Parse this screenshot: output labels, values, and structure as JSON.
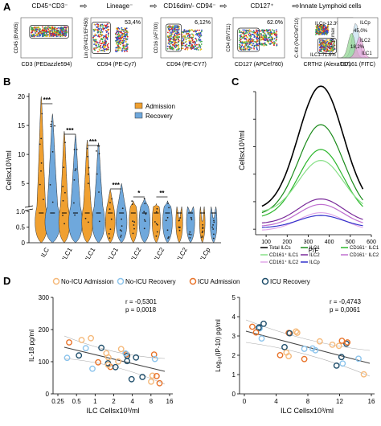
{
  "panelA": {
    "letter": "A",
    "gates": [
      {
        "title": "CD45⁺CD3⁻",
        "ylabel": "CD45 (BV605)",
        "xlabel": "CD3 (PEDazzle594)",
        "pct": ""
      },
      {
        "title": "Lineage⁻",
        "ylabel": "Lin (BV421/EF450)",
        "xlabel": "CD94 (PE-Cy7)",
        "pct": "53,4%"
      },
      {
        "title": "CD16dim/- CD94⁻",
        "ylabel": "CD16 (AF700)",
        "xlabel": "CD94 (PE-CY7)",
        "pct": "6,12%"
      },
      {
        "title": "CD127⁺",
        "ylabel": "CD4 (BV711)",
        "xlabel": "CD127 (APCef780)",
        "pct": "62.0%"
      },
      {
        "title": "Innate Lymphoid cells",
        "ylabel": "C-Kit (PeCPef710)",
        "xlabel": "CRTH2 (Alexa787)",
        "pct": ""
      }
    ],
    "ilc_gates": [
      "ILCp-12.3%",
      "ILC2",
      "13,5%",
      "ILC1-71.6%"
    ],
    "hist": {
      "ylabel": "% of max",
      "xlabel": "CD161 (FITC)",
      "labels": [
        "ILCp",
        "45,0%",
        "ILC2",
        "18,2%",
        "ILC1"
      ]
    }
  },
  "panelB": {
    "letter": "B",
    "ylabel": "Cellsx10³/ml",
    "yticks": [
      "0",
      "0.5",
      "1.0",
      "5",
      "10",
      "15",
      "20"
    ],
    "legend": [
      "Admission",
      "Recovery"
    ],
    "categories": [
      "ILC",
      "ILC1",
      "CD161⁻ ILC1",
      "CD161⁺ ILC1",
      "ILC2",
      "CD161⁻ ILC2",
      "CD161⁺ ILC2",
      "ILCp"
    ],
    "significance": [
      "***",
      "***",
      "***",
      "***",
      "*",
      "**"
    ],
    "colors": {
      "admission": "#f0a030",
      "recovery": "#6fa8dc"
    }
  },
  "panelC": {
    "letter": "C",
    "ylabel": "Cellsx10³/ml",
    "xlabel": "P/F",
    "xticks": [
      "100",
      "200",
      "300",
      "400",
      "500",
      "600"
    ],
    "yticks": [
      "0",
      "1",
      "2",
      "3",
      "4",
      "5"
    ],
    "legend": [
      {
        "name": "Total ILCs",
        "color": "#000000"
      },
      {
        "name": "ILC1",
        "color": "#1a8a1a"
      },
      {
        "name": "CD161⁻ ILC1",
        "color": "#2eb82e"
      },
      {
        "name": "CD161⁺ ILC1",
        "color": "#88e088"
      },
      {
        "name": "ILC2",
        "color": "#7a2a9a"
      },
      {
        "name": "CD161⁻ ILC2",
        "color": "#c070d0"
      },
      {
        "name": "CD161⁺ ILC2",
        "color": "#e0a8e8"
      },
      {
        "name": "ILCp",
        "color": "#3333cc"
      }
    ]
  },
  "panelD": {
    "letter": "D",
    "legend": [
      {
        "name": "No-ICU Admission",
        "color": "#f5b97a"
      },
      {
        "name": "No-ICU Recovery",
        "color": "#8cc4ec"
      },
      {
        "name": "ICU Admission",
        "color": "#e8732a"
      },
      {
        "name": "ICU Recovery",
        "color": "#1f4e6b"
      }
    ],
    "left": {
      "ylabel": "IL-18 pg/ml",
      "xlabel": "ILC Cellsx10³/ml",
      "xticks": [
        "0.25",
        "0.5",
        "1",
        "2",
        "4",
        "8",
        "16"
      ],
      "yticks": [
        "0",
        "100",
        "200",
        "300"
      ],
      "r": "r = -0,5301",
      "p": "p = 0,0018"
    },
    "right": {
      "ylabel": "Log₁₀(IP-10) pg/ml",
      "xlabel": "ILC Cellsx10³/ml",
      "xticks": [
        "0",
        "4",
        "8",
        "12",
        "16"
      ],
      "yticks": [
        "0",
        "1",
        "2",
        "3",
        "4",
        "5"
      ],
      "r": "r = -0,4743",
      "p": "p = 0,0061"
    }
  }
}
